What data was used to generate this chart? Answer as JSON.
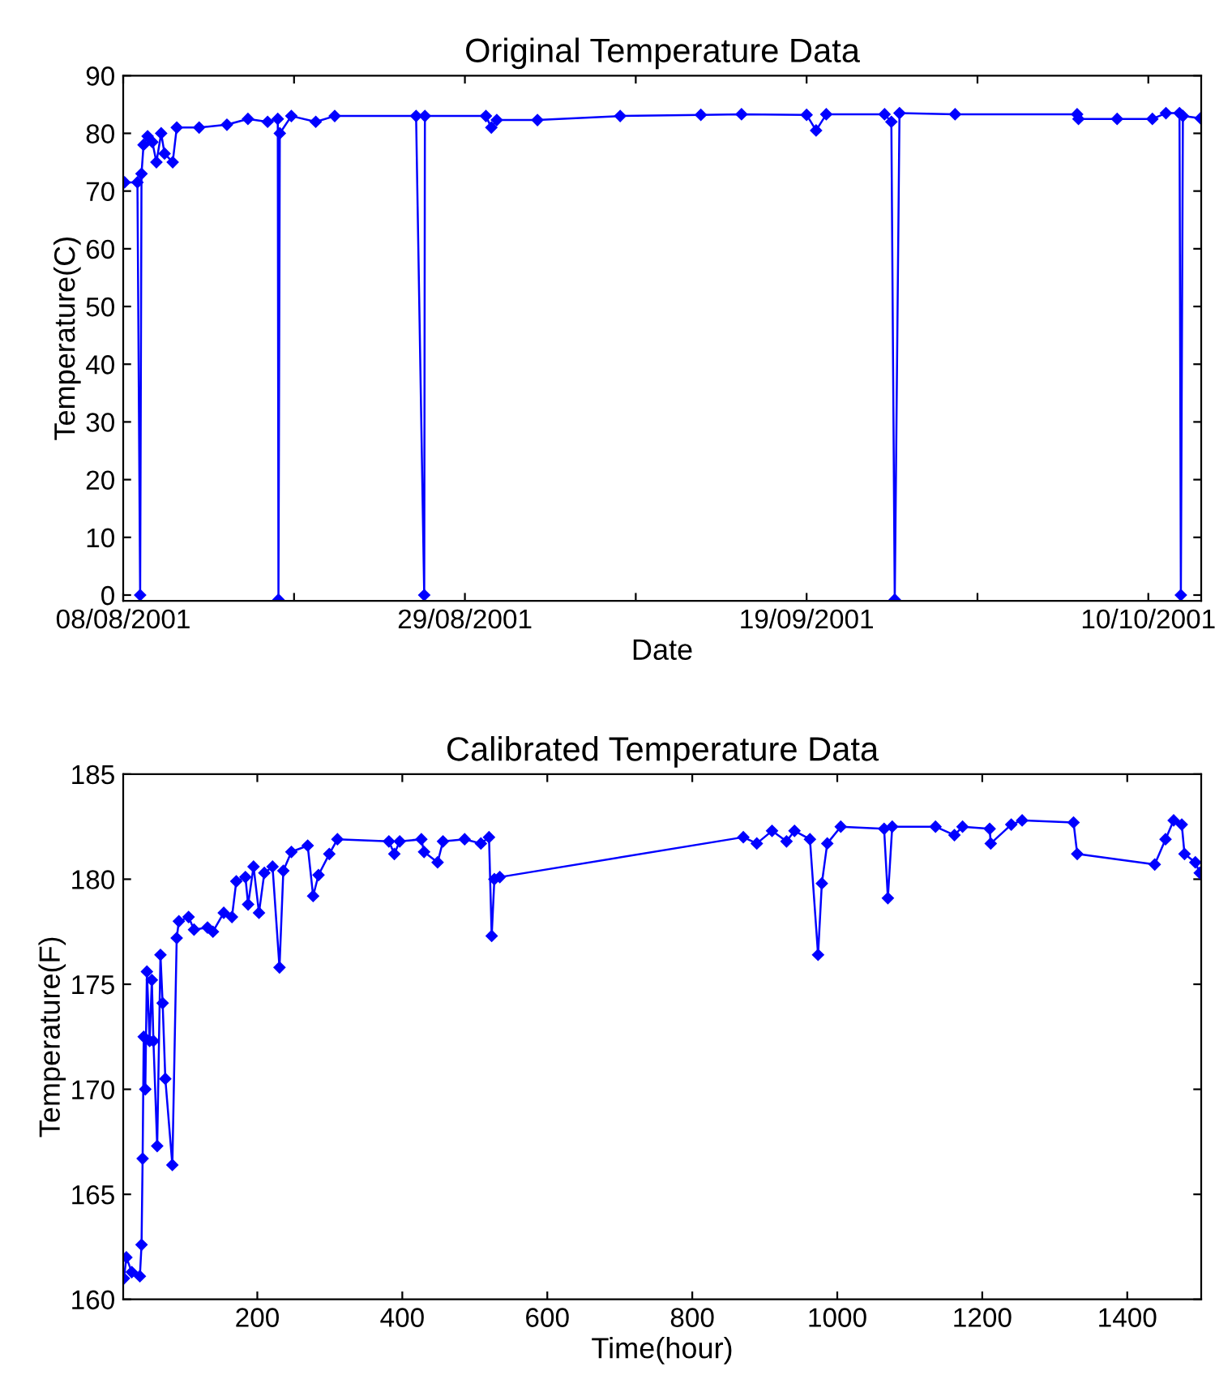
{
  "chart_data": [
    {
      "type": "line",
      "title": "Original Temperature Data",
      "xlabel": "Date",
      "ylabel": "Temperature(C)",
      "marker": "diamond",
      "line_style": "solid",
      "grid": false,
      "legend": false,
      "xlim": [
        "2001-08-08",
        "2001-10-13T06:00"
      ],
      "ylim": [
        -1,
        90
      ],
      "xticks": [
        {
          "value": "2001-08-08",
          "label": "08/08/2001"
        },
        {
          "value": "2001-08-18T12:00",
          "label": null
        },
        {
          "value": "2001-08-29",
          "label": "29/08/2001"
        },
        {
          "value": "2001-09-08T12:00",
          "label": null
        },
        {
          "value": "2001-09-19",
          "label": "19/09/2001"
        },
        {
          "value": "2001-09-29T12:00",
          "label": null
        },
        {
          "value": "2001-10-10",
          "label": "10/10/2001"
        }
      ],
      "yticks": [
        0,
        10,
        20,
        30,
        40,
        50,
        60,
        70,
        80,
        90
      ],
      "series": [
        {
          "color": "#0000ff",
          "x": [
            "2001-08-08T02:00",
            "2001-08-08T21:00",
            "2001-08-09T01:00",
            "2001-08-09T03:00",
            "2001-08-09T06:00",
            "2001-08-09T12:00",
            "2001-08-09T19:00",
            "2001-08-10T01:00",
            "2001-08-10T08:00",
            "2001-08-10T13:00",
            "2001-08-11T01:00",
            "2001-08-11T07:00",
            "2001-08-12T16:00",
            "2001-08-14T09:00",
            "2001-08-15T16:00",
            "2001-08-16T21:00",
            "2001-08-17T12:00",
            "2001-08-17T13:00",
            "2001-08-17T15:00",
            "2001-08-18T08:00",
            "2001-08-19T20:00",
            "2001-08-21T00:00",
            "2001-08-26T00:00",
            "2001-08-26T12:00",
            "2001-08-26T13:00",
            "2001-08-30T07:00",
            "2001-08-30T15:00",
            "2001-08-30T23:00",
            "2001-09-02T11:00",
            "2001-09-07T13:00",
            "2001-09-12T12:00",
            "2001-09-15T00:00",
            "2001-09-19T00:00",
            "2001-09-19T14:00",
            "2001-09-20T05:00",
            "2001-09-23T19:00",
            "2001-09-24T05:00",
            "2001-09-24T10:00",
            "2001-09-24T17:00",
            "2001-09-28T03:00",
            "2001-10-05T15:00",
            "2001-10-05T17:00",
            "2001-10-08T02:00",
            "2001-10-10T06:00",
            "2001-10-11T02:00",
            "2001-10-11T22:00",
            "2001-10-12T00:00",
            "2001-10-12T03:00",
            "2001-10-13T05:00"
          ],
          "values": [
            71.5,
            71.5,
            0,
            73,
            78,
            79.5,
            78.5,
            75,
            80,
            76.5,
            75,
            81,
            81,
            81.5,
            82.5,
            82,
            82.5,
            -0.8,
            80,
            83,
            82,
            83,
            83,
            0,
            83,
            83,
            81,
            82.3,
            82.3,
            83,
            83.2,
            83.3,
            83.2,
            80.5,
            83.3,
            83.3,
            82,
            -0.8,
            83.5,
            83.3,
            83.3,
            82.5,
            82.5,
            82.5,
            83.5,
            83.5,
            0,
            83,
            82.6
          ]
        }
      ]
    },
    {
      "type": "line",
      "title": "Calibrated Temperature Data",
      "xlabel": "Time(hour)",
      "ylabel": "Temperature(F)",
      "marker": "diamond",
      "line_style": "solid",
      "grid": false,
      "legend": false,
      "xlim": [
        15,
        1502
      ],
      "ylim": [
        160,
        185
      ],
      "xticks": [
        200,
        400,
        600,
        800,
        1000,
        1200,
        1400
      ],
      "yticks": [
        160,
        165,
        170,
        175,
        180,
        185
      ],
      "series": [
        {
          "color": "#0000ff",
          "x": [
            16,
            19.4,
            26.8,
            38,
            40.3,
            41.8,
            43.3,
            45.5,
            47.7,
            51.5,
            54.5,
            56.7,
            61.9,
            66.4,
            69.4,
            73.1,
            82.8,
            88.8,
            91.8,
            105.2,
            112.7,
            131.3,
            138.8,
            153.7,
            165,
            171,
            183.6,
            187.3,
            194.8,
            202.3,
            209.7,
            221,
            230.6,
            235.9,
            247,
            269.5,
            277,
            284.4,
            299.3,
            310.5,
            381.5,
            389,
            396.4,
            426.3,
            430,
            448.7,
            456.1,
            486,
            508.4,
            519.6,
            523.3,
            527,
            534.5,
            870.4,
            889,
            910,
            930,
            941,
            962.3,
            973.5,
            978.7,
            986.2,
            1004.8,
            1064.6,
            1069.8,
            1075.8,
            1135.5,
            1161.6,
            1172.8,
            1210.2,
            1211.7,
            1240,
            1255,
            1325.9,
            1331,
            1437.9,
            1452.8,
            1464,
            1475.2,
            1479,
            1493.9,
            1500
          ],
          "values": [
            161.0,
            162.0,
            161.3,
            161.1,
            162.6,
            166.7,
            172.5,
            170,
            175.6,
            172.3,
            175.2,
            172.3,
            167.3,
            176.4,
            174.1,
            170.5,
            166.4,
            177.2,
            178,
            178.2,
            177.6,
            177.7,
            177.5,
            178.4,
            178.2,
            179.9,
            180.1,
            178.8,
            180.6,
            178.4,
            180.3,
            180.6,
            175.8,
            180.4,
            181.3,
            181.6,
            179.2,
            180.2,
            181.2,
            181.9,
            181.8,
            181.2,
            181.8,
            181.9,
            181.3,
            180.8,
            181.8,
            181.9,
            181.7,
            182.0,
            177.3,
            180.0,
            180.1,
            182.0,
            181.7,
            182.3,
            181.8,
            182.3,
            181.9,
            176.4,
            179.8,
            181.7,
            182.5,
            182.4,
            179.1,
            182.5,
            182.5,
            182.1,
            182.5,
            182.4,
            181.7,
            182.6,
            182.8,
            182.7,
            181.2,
            180.7,
            181.9,
            182.8,
            182.6,
            181.2,
            180.8,
            180.3
          ]
        }
      ]
    }
  ]
}
